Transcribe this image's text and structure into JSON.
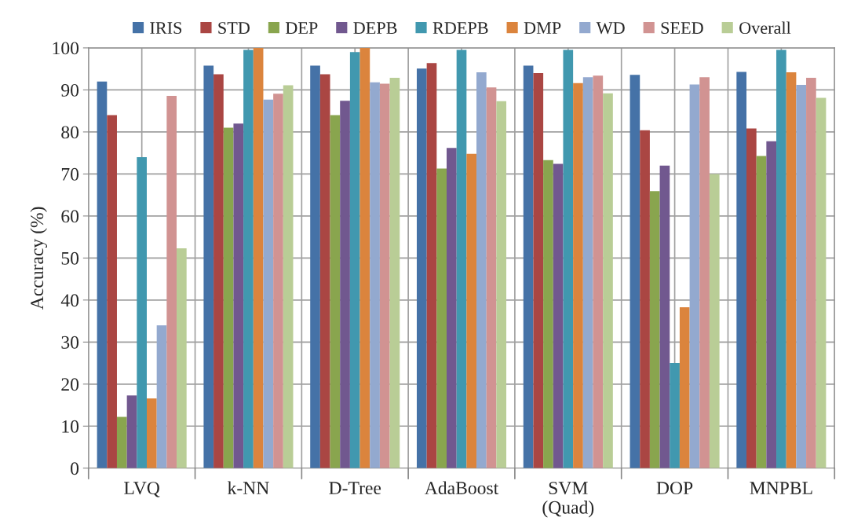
{
  "chart_data": {
    "type": "bar",
    "ylabel": "Accuracy (%)",
    "categories": [
      "LVQ",
      "k-NN",
      "D-Tree",
      "AdaBoost",
      "SVM\n(Quad)",
      "DOP",
      "MNPBL"
    ],
    "series": [
      {
        "name": "IRIS",
        "color": "#4572a7",
        "values": [
          92,
          95.8,
          95.8,
          95.1,
          95.8,
          93.6,
          94.3
        ]
      },
      {
        "name": "STD",
        "color": "#aa4643",
        "values": [
          84,
          93.7,
          93.7,
          96.4,
          94,
          80.4,
          80.8
        ]
      },
      {
        "name": "DEP",
        "color": "#89a54e",
        "values": [
          12.2,
          81,
          84,
          71.3,
          73.3,
          65.9,
          74.3
        ]
      },
      {
        "name": "DEPB",
        "color": "#71588f",
        "values": [
          17.3,
          82,
          87.4,
          76.2,
          72.4,
          72,
          77.8
        ]
      },
      {
        "name": "RDEPB",
        "color": "#4198af",
        "values": [
          74,
          99.5,
          99,
          99.5,
          99.5,
          25,
          99.5
        ]
      },
      {
        "name": "DMP",
        "color": "#db843d",
        "values": [
          16.6,
          100,
          100,
          74.8,
          91.6,
          38.3,
          94.2
        ]
      },
      {
        "name": "WD",
        "color": "#93a9cf",
        "values": [
          34,
          87.7,
          91.8,
          94.2,
          93,
          91.3,
          91.2
        ]
      },
      {
        "name": "SEED",
        "color": "#d19392",
        "values": [
          88.6,
          89.1,
          91.5,
          90.6,
          93.4,
          93,
          92.9
        ]
      },
      {
        "name": "Overall",
        "color": "#b9cd96",
        "values": [
          52.3,
          91.1,
          92.9,
          87.3,
          89.2,
          70,
          88.1
        ]
      }
    ],
    "ylim": [
      0,
      100
    ],
    "yticks": [
      0,
      10,
      20,
      30,
      40,
      50,
      60,
      70,
      80,
      90,
      100
    ],
    "grid": true,
    "legend": "top"
  }
}
